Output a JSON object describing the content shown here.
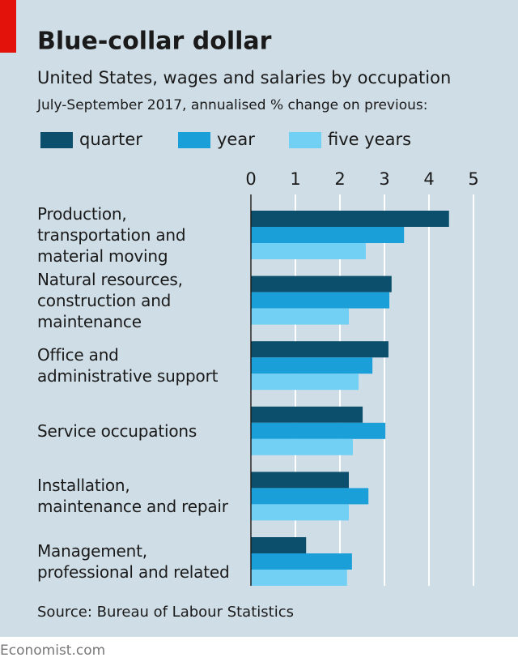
{
  "chart_data": {
    "type": "bar",
    "orientation": "horizontal",
    "title": "Blue-collar dollar",
    "subtitle": "United States, wages and salaries by occupation",
    "subtitle2": "July-September 2017, annualised % change on previous:",
    "source": "Source: Bureau of Labour Statistics",
    "footer": "Economist.com",
    "categories": [
      "Production,\ntransportation and\nmaterial moving",
      "Natural resources,\nconstruction and\nmaintenance",
      "Office and\nadministrative support",
      "Service occupations",
      "Installation,\nmaintenance and repair",
      "Management,\nprofessional and related"
    ],
    "series": [
      {
        "name": "quarter",
        "color": "#0b4f6c",
        "values": [
          4.45,
          3.16,
          3.09,
          2.51,
          2.2,
          1.24
        ]
      },
      {
        "name": "year",
        "color": "#1a9fd9",
        "values": [
          3.44,
          3.11,
          2.73,
          3.02,
          2.64,
          2.27
        ]
      },
      {
        "name": "five years",
        "color": "#72d0f5",
        "values": [
          2.58,
          2.2,
          2.42,
          2.29,
          2.2,
          2.16
        ]
      }
    ],
    "xlim": [
      0,
      5
    ],
    "xticks": [
      0,
      1,
      2,
      3,
      4,
      5
    ],
    "grid": true
  }
}
